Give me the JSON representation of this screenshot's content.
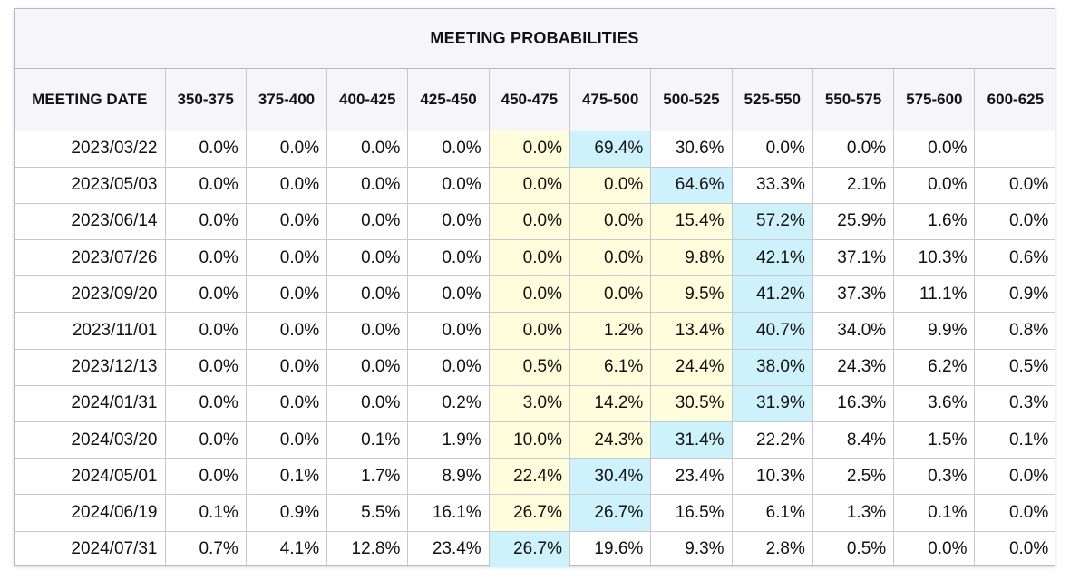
{
  "title": "MEETING PROBABILITIES",
  "header": {
    "date_label": "MEETING DATE",
    "columns": [
      "350-375",
      "375-400",
      "400-425",
      "425-450",
      "450-475",
      "475-500",
      "500-525",
      "525-550",
      "550-575",
      "575-600",
      "600-625"
    ]
  },
  "highlight_colors": {
    "yellow": "#fefedc",
    "blue": "#cdf2fb"
  },
  "rows": [
    {
      "date": "2023/03/22",
      "values": [
        "0.0%",
        "0.0%",
        "0.0%",
        "0.0%",
        "0.0%",
        "69.4%",
        "30.6%",
        "0.0%",
        "0.0%",
        "0.0%",
        ""
      ],
      "highlight": {
        "yellow": [
          4
        ],
        "blue": [
          5
        ]
      }
    },
    {
      "date": "2023/05/03",
      "values": [
        "0.0%",
        "0.0%",
        "0.0%",
        "0.0%",
        "0.0%",
        "0.0%",
        "64.6%",
        "33.3%",
        "2.1%",
        "0.0%",
        "0.0%"
      ],
      "highlight": {
        "yellow": [
          4,
          5
        ],
        "blue": [
          6
        ]
      }
    },
    {
      "date": "2023/06/14",
      "values": [
        "0.0%",
        "0.0%",
        "0.0%",
        "0.0%",
        "0.0%",
        "0.0%",
        "15.4%",
        "57.2%",
        "25.9%",
        "1.6%",
        "0.0%"
      ],
      "highlight": {
        "yellow": [
          4,
          5,
          6
        ],
        "blue": [
          7
        ]
      }
    },
    {
      "date": "2023/07/26",
      "values": [
        "0.0%",
        "0.0%",
        "0.0%",
        "0.0%",
        "0.0%",
        "0.0%",
        "9.8%",
        "42.1%",
        "37.1%",
        "10.3%",
        "0.6%"
      ],
      "highlight": {
        "yellow": [
          4,
          5,
          6
        ],
        "blue": [
          7
        ]
      }
    },
    {
      "date": "2023/09/20",
      "values": [
        "0.0%",
        "0.0%",
        "0.0%",
        "0.0%",
        "0.0%",
        "0.0%",
        "9.5%",
        "41.2%",
        "37.3%",
        "11.1%",
        "0.9%"
      ],
      "highlight": {
        "yellow": [
          4,
          5,
          6
        ],
        "blue": [
          7
        ]
      }
    },
    {
      "date": "2023/11/01",
      "values": [
        "0.0%",
        "0.0%",
        "0.0%",
        "0.0%",
        "0.0%",
        "1.2%",
        "13.4%",
        "40.7%",
        "34.0%",
        "9.9%",
        "0.8%"
      ],
      "highlight": {
        "yellow": [
          4,
          5,
          6
        ],
        "blue": [
          7
        ]
      }
    },
    {
      "date": "2023/12/13",
      "values": [
        "0.0%",
        "0.0%",
        "0.0%",
        "0.0%",
        "0.5%",
        "6.1%",
        "24.4%",
        "38.0%",
        "24.3%",
        "6.2%",
        "0.5%"
      ],
      "highlight": {
        "yellow": [
          4,
          5,
          6
        ],
        "blue": [
          7
        ]
      }
    },
    {
      "date": "2024/01/31",
      "values": [
        "0.0%",
        "0.0%",
        "0.0%",
        "0.2%",
        "3.0%",
        "14.2%",
        "30.5%",
        "31.9%",
        "16.3%",
        "3.6%",
        "0.3%"
      ],
      "highlight": {
        "yellow": [
          4,
          5,
          6
        ],
        "blue": [
          7
        ]
      }
    },
    {
      "date": "2024/03/20",
      "values": [
        "0.0%",
        "0.0%",
        "0.1%",
        "1.9%",
        "10.0%",
        "24.3%",
        "31.4%",
        "22.2%",
        "8.4%",
        "1.5%",
        "0.1%"
      ],
      "highlight": {
        "yellow": [
          4,
          5
        ],
        "blue": [
          6
        ]
      }
    },
    {
      "date": "2024/05/01",
      "values": [
        "0.0%",
        "0.1%",
        "1.7%",
        "8.9%",
        "22.4%",
        "30.4%",
        "23.4%",
        "10.3%",
        "2.5%",
        "0.3%",
        "0.0%"
      ],
      "highlight": {
        "yellow": [
          4
        ],
        "blue": [
          5
        ]
      }
    },
    {
      "date": "2024/06/19",
      "values": [
        "0.1%",
        "0.9%",
        "5.5%",
        "16.1%",
        "26.7%",
        "26.7%",
        "16.5%",
        "6.1%",
        "1.3%",
        "0.1%",
        "0.0%"
      ],
      "highlight": {
        "yellow": [
          4
        ],
        "blue": [
          5
        ]
      }
    },
    {
      "date": "2024/07/31",
      "values": [
        "0.7%",
        "4.1%",
        "12.8%",
        "23.4%",
        "26.7%",
        "19.6%",
        "9.3%",
        "2.8%",
        "0.5%",
        "0.0%",
        "0.0%"
      ],
      "highlight": {
        "yellow": [],
        "blue": [
          4
        ]
      }
    }
  ]
}
